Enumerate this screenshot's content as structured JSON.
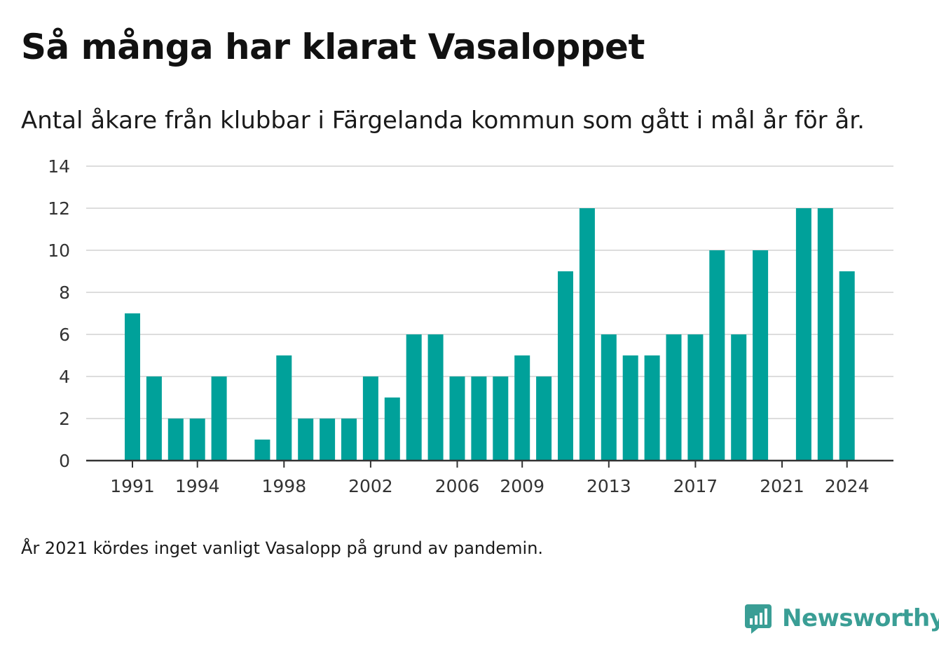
{
  "title": "Så många har klarat Vasaloppet",
  "subtitle": "Antal åkare från klubbar i Färgelanda kommun som gått i mål år för år.",
  "footnote": "År 2021 kördes inget vanligt Vasalopp på grund av pandemin.",
  "brand": {
    "name": "Newsworthy",
    "logo_icon": "newsworthy-logo-icon",
    "color": "#3a9e95"
  },
  "chart_data": {
    "type": "bar",
    "bar_color": "#00a19a",
    "categories": [
      1991,
      1992,
      1993,
      1994,
      1995,
      1996,
      1997,
      1998,
      1999,
      2000,
      2001,
      2002,
      2003,
      2004,
      2005,
      2006,
      2007,
      2008,
      2009,
      2010,
      2011,
      2012,
      2013,
      2014,
      2015,
      2016,
      2017,
      2018,
      2019,
      2020,
      2021,
      2022,
      2023,
      2024
    ],
    "values": [
      7,
      4,
      2,
      2,
      4,
      0,
      1,
      5,
      2,
      2,
      2,
      4,
      3,
      6,
      6,
      4,
      4,
      4,
      5,
      4,
      9,
      12,
      6,
      5,
      5,
      6,
      6,
      10,
      6,
      10,
      0,
      12,
      12,
      9
    ],
    "x_tick_labels": [
      "1991",
      "1994",
      "1998",
      "2002",
      "2006",
      "2009",
      "2013",
      "2017",
      "2021",
      "2024"
    ],
    "y_ticks": [
      0,
      2,
      4,
      6,
      8,
      10,
      12,
      14
    ],
    "ylim": [
      0,
      14
    ],
    "grid": true,
    "xlabel": "",
    "ylabel": ""
  }
}
